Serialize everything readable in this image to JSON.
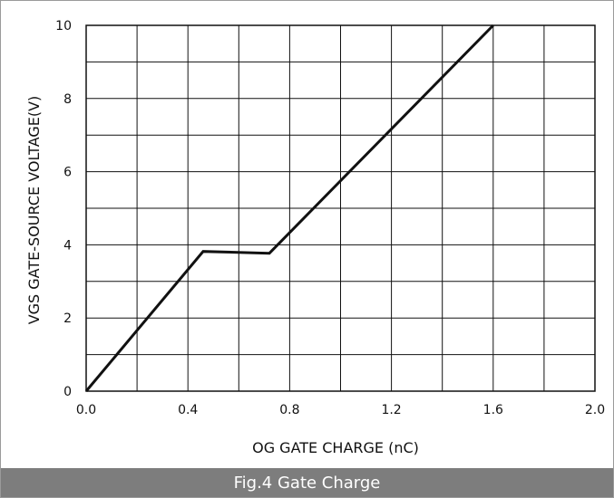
{
  "chart_data": {
    "type": "line",
    "title": "",
    "xlabel": "OG GATE CHARGE  (nC)",
    "ylabel": "VGS GATE-SOURCE VOLTAGE(V)",
    "xlim": [
      0,
      2.0
    ],
    "ylim": [
      0,
      10
    ],
    "x_ticks": [
      "0.0",
      "0.4",
      "0.8",
      "1.2",
      "1.6",
      "2.0"
    ],
    "y_ticks": [
      "0",
      "2",
      "4",
      "6",
      "8",
      "10"
    ],
    "grid": true,
    "x_minor_divisions": 2,
    "y_minor_divisions": 2,
    "series": [
      {
        "x": [
          0.0,
          0.46,
          0.72,
          1.6
        ],
        "y": [
          0.0,
          3.82,
          3.77,
          10.0
        ],
        "color": "#111111"
      }
    ]
  },
  "caption": "Fig.4  Gate Charge",
  "colors": {
    "caption_bg": "#7d7d7d",
    "line": "#111111",
    "grid": "#111111"
  }
}
